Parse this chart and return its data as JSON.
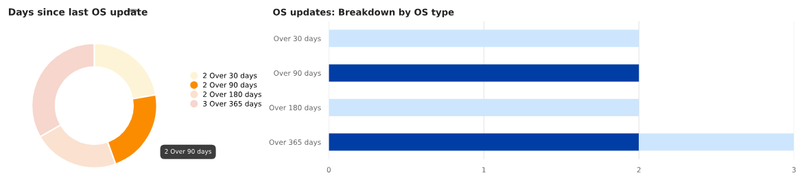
{
  "chart_data": [
    {
      "type": "donut",
      "title": "Days since last OS update",
      "categories": [
        "2 Over 30 days",
        "2 Over 90 days",
        "2 Over 180 days",
        "3 Over 365 days"
      ],
      "values": [
        2,
        2,
        2,
        3
      ],
      "colors": [
        "#fdf4d7",
        "#fb8c00",
        "#fbe1cf",
        "#f6d6cd"
      ],
      "legend": "right",
      "annotations": [
        "2 Over 90 days"
      ]
    },
    {
      "type": "bar",
      "title": "OS updates: Breakdown by OS type",
      "orientation": "horizontal",
      "stacked": true,
      "categories": [
        "Over 30 days",
        "Over 90 days",
        "Over 180 days",
        "Over 365 days"
      ],
      "series": [
        {
          "color": "#003da5",
          "values": [
            0,
            2,
            0,
            2
          ]
        },
        {
          "color": "#cde6fd",
          "values": [
            2,
            0,
            2,
            1
          ]
        }
      ],
      "xlim": [
        0,
        3
      ],
      "xticks": [
        0,
        1,
        2,
        3
      ],
      "grid": "x"
    }
  ]
}
